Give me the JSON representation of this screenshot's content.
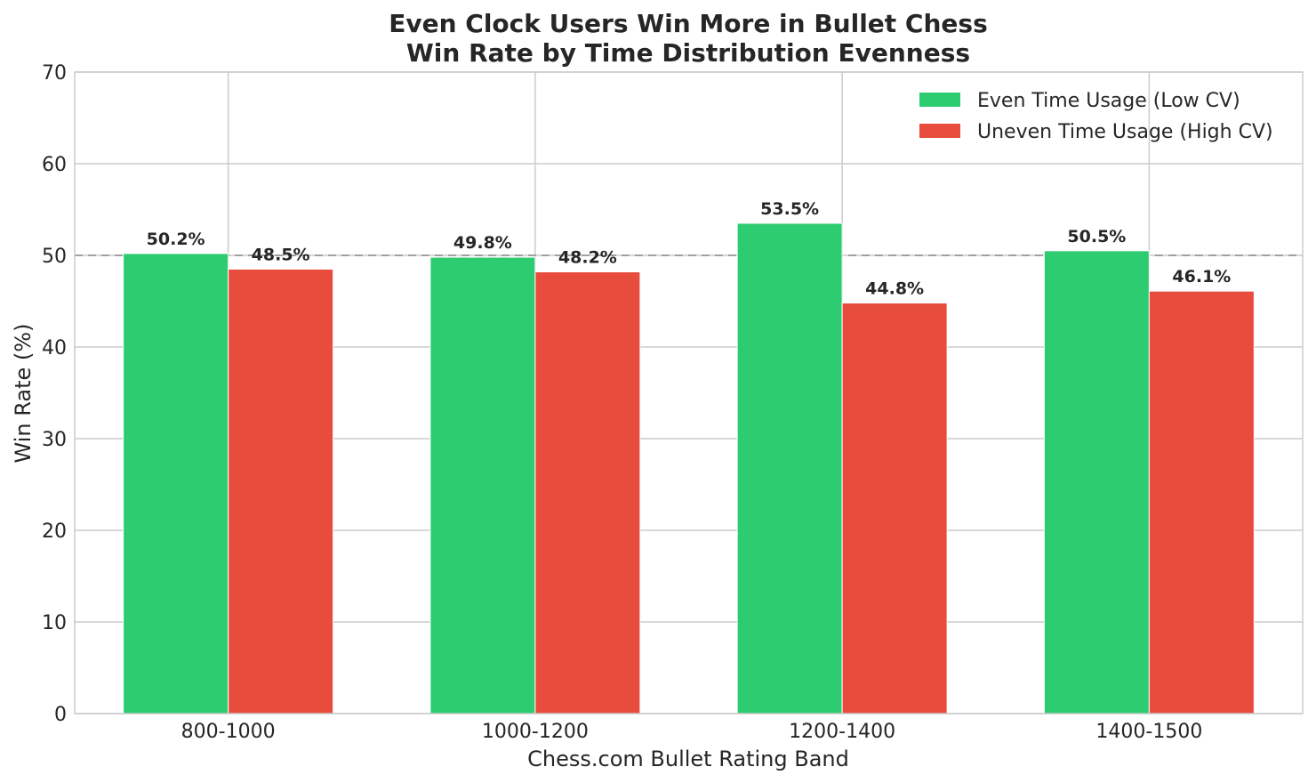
{
  "chart_data": {
    "type": "bar",
    "title": "Even Clock Users Win More in Bullet Chess",
    "subtitle": "Win Rate by Time Distribution Evenness",
    "xlabel": "Chess.com Bullet Rating Band",
    "ylabel": "Win Rate (%)",
    "ylim": [
      0,
      70
    ],
    "yticks": [
      0,
      10,
      20,
      30,
      40,
      50,
      60,
      70
    ],
    "categories": [
      "800-1000",
      "1000-1200",
      "1200-1400",
      "1400-1500"
    ],
    "series": [
      {
        "name": "Even Time Usage (Low CV)",
        "color": "#2ecc71",
        "values": [
          50.2,
          49.8,
          53.5,
          50.5
        ],
        "labels": [
          "50.2%",
          "49.8%",
          "53.5%",
          "50.5%"
        ]
      },
      {
        "name": "Uneven Time Usage (High CV)",
        "color": "#e74c3c",
        "values": [
          48.5,
          48.2,
          44.8,
          46.1
        ],
        "labels": [
          "48.5%",
          "48.2%",
          "44.8%",
          "46.1%"
        ]
      }
    ],
    "reference_line": {
      "value": 50,
      "style": "dashed",
      "color": "#a0a0a0"
    },
    "grid": true,
    "legend_position": "top-right"
  }
}
